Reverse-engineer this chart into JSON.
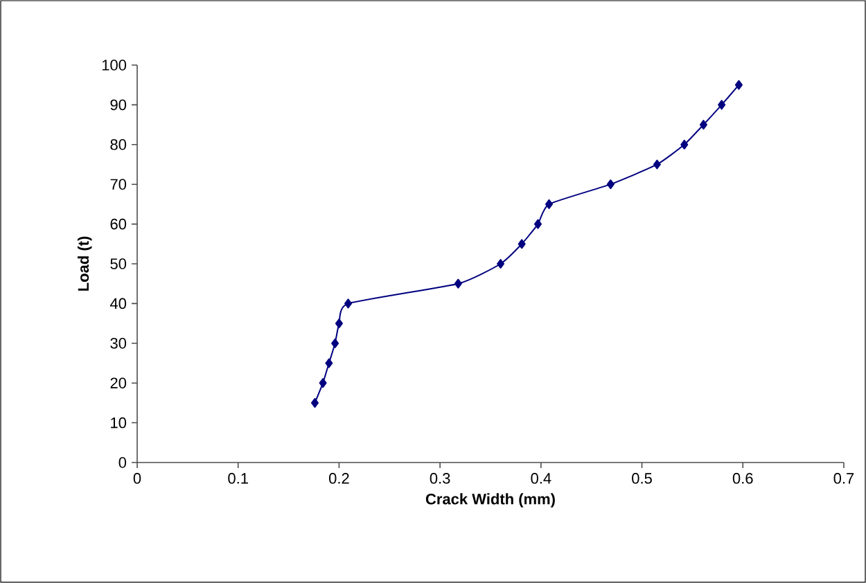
{
  "chart_data": {
    "type": "line",
    "xlabel": "Crack Width (mm)",
    "ylabel": "Load (t)",
    "series": [
      {
        "color": "#000080",
        "x": [
          0.176,
          0.184,
          0.19,
          0.196,
          0.2,
          0.209,
          0.318,
          0.36,
          0.381,
          0.397,
          0.408,
          0.469,
          0.515,
          0.542,
          0.561,
          0.579,
          0.596
        ],
        "values": [
          15,
          20,
          25,
          30,
          35,
          40,
          45,
          50,
          55,
          60,
          65,
          70,
          75,
          80,
          85,
          90,
          95
        ]
      }
    ],
    "xlim": [
      0,
      0.7
    ],
    "ylim": [
      0,
      100
    ],
    "xticks": [
      0,
      0.1,
      0.2,
      0.3,
      0.4,
      0.5,
      0.6,
      0.7
    ],
    "yticks": [
      0,
      10,
      20,
      30,
      40,
      50,
      60,
      70,
      80,
      90,
      100
    ],
    "marker": "diamond",
    "line_style": "solid"
  }
}
